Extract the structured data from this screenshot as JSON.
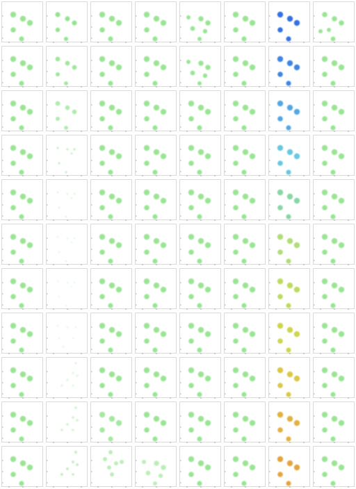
{
  "grid": {
    "rows": 11,
    "cols": 8
  },
  "colors": {
    "default": "#8fe28a",
    "rows_col7": [
      "#1e63e0",
      "#2a78e0",
      "#3f9ee2",
      "#56c3dd",
      "#7ad39a",
      "#a8d96a",
      "#b6d84d",
      "#c9d23a",
      "#d7c233",
      "#e0a92b",
      "#e39a28"
    ]
  },
  "panels": [
    [
      {
        "v": "a"
      },
      {
        "v": "a",
        "o": 0.95,
        "s": 0.85
      },
      {
        "v": "a"
      },
      {
        "v": "a"
      },
      {
        "v": "c"
      },
      {
        "v": "a"
      },
      {
        "v": "a",
        "c": "x"
      },
      {
        "v": "e"
      }
    ],
    [
      {
        "v": "a"
      },
      {
        "v": "a",
        "o": 0.85,
        "s": 0.8
      },
      {
        "v": "a"
      },
      {
        "v": "a"
      },
      {
        "v": "c"
      },
      {
        "v": "a"
      },
      {
        "v": "a",
        "c": "x"
      },
      {
        "v": "a"
      }
    ],
    [
      {
        "v": "a"
      },
      {
        "v": "a",
        "o": 0.7,
        "s": 0.8
      },
      {
        "v": "a"
      },
      {
        "v": "a"
      },
      {
        "v": "a"
      },
      {
        "v": "a"
      },
      {
        "v": "a",
        "c": "x"
      },
      {
        "v": "a"
      }
    ],
    [
      {
        "v": "a"
      },
      {
        "v": "b",
        "o": 0.5,
        "s": 0.75
      },
      {
        "v": "a"
      },
      {
        "v": "a"
      },
      {
        "v": "a"
      },
      {
        "v": "a"
      },
      {
        "v": "a",
        "c": "x"
      },
      {
        "v": "a"
      }
    ],
    [
      {
        "v": "a"
      },
      {
        "v": "b",
        "o": 0.25,
        "s": 0.7
      },
      {
        "v": "a"
      },
      {
        "v": "a"
      },
      {
        "v": "a"
      },
      {
        "v": "a"
      },
      {
        "v": "a",
        "c": "x"
      },
      {
        "v": "a"
      }
    ],
    [
      {
        "v": "a"
      },
      {
        "v": "b",
        "o": 0.2,
        "s": 0.7
      },
      {
        "v": "a"
      },
      {
        "v": "a"
      },
      {
        "v": "a"
      },
      {
        "v": "a"
      },
      {
        "v": "a",
        "c": "x"
      },
      {
        "v": "a"
      }
    ],
    [
      {
        "v": "a"
      },
      {
        "v": "b",
        "o": 0.18,
        "s": 0.7
      },
      {
        "v": "a"
      },
      {
        "v": "a"
      },
      {
        "v": "a"
      },
      {
        "v": "a"
      },
      {
        "v": "a",
        "c": "x"
      },
      {
        "v": "a"
      }
    ],
    [
      {
        "v": "a"
      },
      {
        "v": "d",
        "o": 0.18,
        "s": 0.7
      },
      {
        "v": "a"
      },
      {
        "v": "a"
      },
      {
        "v": "a"
      },
      {
        "v": "a"
      },
      {
        "v": "a",
        "c": "x"
      },
      {
        "v": "a"
      }
    ],
    [
      {
        "v": "a"
      },
      {
        "v": "f",
        "o": 0.25,
        "s": 0.7
      },
      {
        "v": "a"
      },
      {
        "v": "a"
      },
      {
        "v": "a"
      },
      {
        "v": "a"
      },
      {
        "v": "a",
        "c": "x"
      },
      {
        "v": "a"
      }
    ],
    [
      {
        "v": "a"
      },
      {
        "v": "f",
        "o": 0.4,
        "s": 0.7
      },
      {
        "v": "a",
        "o": 0.8
      },
      {
        "v": "a"
      },
      {
        "v": "a"
      },
      {
        "v": "a"
      },
      {
        "v": "a",
        "c": "x"
      },
      {
        "v": "a"
      }
    ],
    [
      {
        "v": "a"
      },
      {
        "v": "f",
        "o": 0.55,
        "s": 0.75
      },
      {
        "v": "g",
        "o": 0.6
      },
      {
        "v": "c",
        "o": 0.6
      },
      {
        "v": "a"
      },
      {
        "v": "a"
      },
      {
        "v": "a",
        "c": "x"
      },
      {
        "v": "a"
      }
    ]
  ]
}
